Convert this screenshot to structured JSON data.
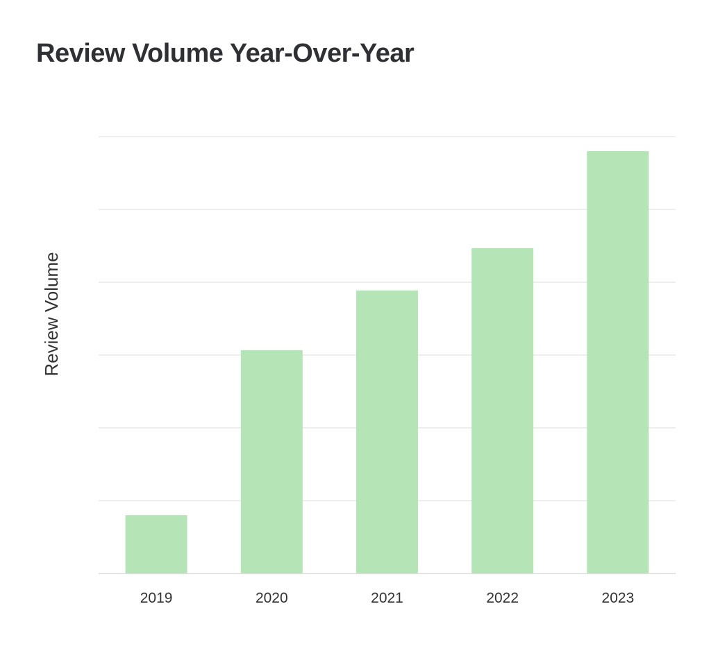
{
  "chart_data": {
    "type": "bar",
    "title": "Review Volume Year-Over-Year",
    "xlabel": "",
    "ylabel": "Review Volume",
    "categories": [
      "2019",
      "2020",
      "2021",
      "2022",
      "2023"
    ],
    "values": [
      12,
      46,
      58.3,
      67,
      87
    ],
    "ylim": [
      0,
      90
    ],
    "gridlines": [
      0,
      15,
      30,
      45,
      60,
      75,
      90
    ],
    "grid": true,
    "y_tick_labels_shown": false,
    "bar_color": "#b5e4b6",
    "grid_color": "#e3e3e3",
    "legend": "none"
  }
}
